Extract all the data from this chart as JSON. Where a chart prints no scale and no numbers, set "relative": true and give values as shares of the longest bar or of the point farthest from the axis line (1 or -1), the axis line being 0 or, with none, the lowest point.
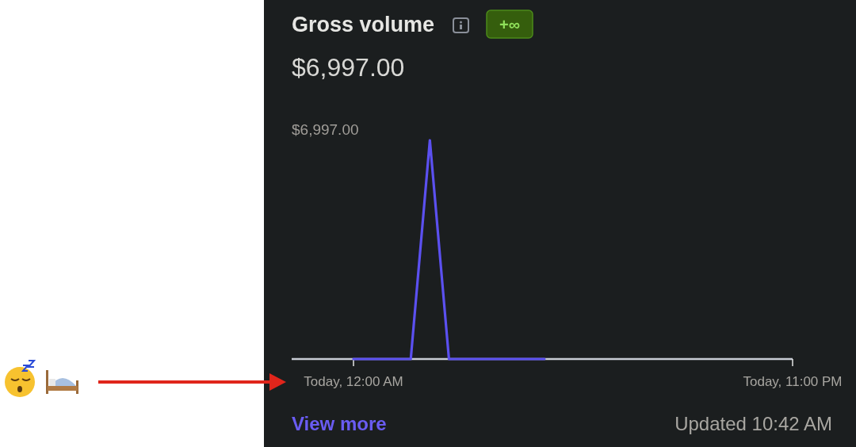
{
  "chart_data": {
    "type": "line",
    "title": "Gross volume",
    "subtitle": "$6,997.00",
    "annotations": [
      "+∞",
      "View more",
      "Updated 10:42 AM",
      "$6,997.00"
    ],
    "categories": [
      "Today, 12:00 AM",
      null,
      null,
      null,
      null,
      null,
      null,
      null,
      null,
      null,
      null,
      null,
      null,
      null,
      null,
      null,
      null,
      null,
      null,
      null,
      null,
      null,
      null,
      "Today, 11:00 PM"
    ],
    "series": [
      {
        "color": "#5b50f0",
        "values": [
          0,
          0,
          0,
          0,
          1,
          0,
          0,
          0,
          0,
          0,
          0,
          null,
          null,
          null,
          null,
          null,
          null,
          null,
          null,
          null,
          null,
          null,
          null,
          null
        ]
      }
    ],
    "relative": true,
    "marker": "none",
    "line_style": "solid"
  }
}
